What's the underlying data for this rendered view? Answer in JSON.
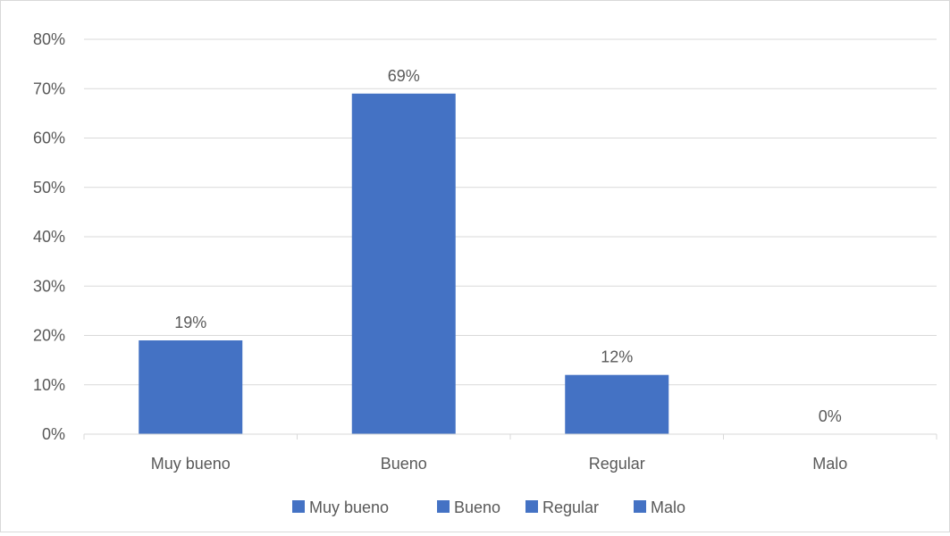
{
  "chart_data": {
    "type": "bar",
    "title": "",
    "xlabel": "",
    "ylabel": "",
    "categories": [
      "Muy bueno",
      "Bueno",
      "Regular",
      "Malo"
    ],
    "values": [
      19,
      69,
      12,
      0
    ],
    "value_labels": [
      "19%",
      "69%",
      "12%",
      "0%"
    ],
    "ylim": [
      0,
      80
    ],
    "yticks": [
      0,
      10,
      20,
      30,
      40,
      50,
      60,
      70,
      80
    ],
    "ytick_labels": [
      "0%",
      "10%",
      "20%",
      "30%",
      "40%",
      "50%",
      "60%",
      "70%",
      "80%"
    ],
    "grid": true,
    "legend_position": "bottom",
    "legend": [
      "Muy bueno",
      "Bueno",
      "Regular",
      "Malo"
    ],
    "bar_color": "#4472c4",
    "grid_color": "#d9d9d9"
  }
}
